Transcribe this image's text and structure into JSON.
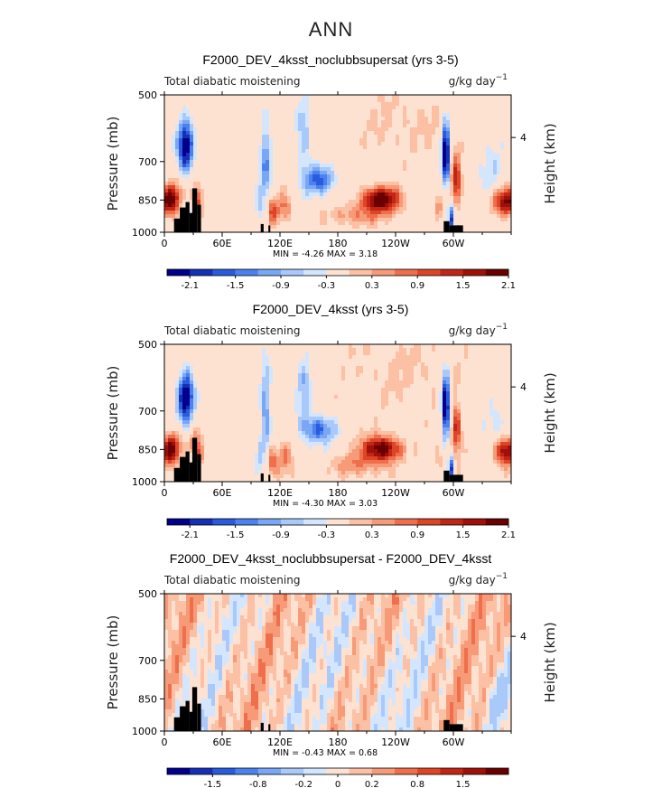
{
  "page_title": "ANN",
  "colors": [
    "#00008c",
    "#1530b5",
    "#2a5bdc",
    "#4b82f0",
    "#7aa7f5",
    "#a9c9fb",
    "#d3e6fd",
    "#fde2d2",
    "#fcc0a4",
    "#f79a78",
    "#ef6e4c",
    "#de4526",
    "#c22515",
    "#9e1009",
    "#6a0000"
  ],
  "chart_data": [
    {
      "type": "heatmap",
      "title": "F2000_DEV_4ksst_noclubbsupersat (yrs 3-5)",
      "left_label": "Total diabatic moistening",
      "units": "g/kg day",
      "units_exp": "−1",
      "ylabel": "Pressure (mb)",
      "right_label": "Height (km)",
      "right_tick": "4",
      "y_ticks": [
        "500",
        "700",
        "850",
        "1000"
      ],
      "x_ticks": [
        "0",
        "60E",
        "120E",
        "180",
        "120W",
        "60W"
      ],
      "xlim": [
        0,
        360
      ],
      "ylim": [
        1000,
        500
      ],
      "min_label": "MIN =",
      "min_value": "-4.26",
      "max_label": "MAX =",
      "max_value": "3.18",
      "colorbar_ticks": [
        "-2.1",
        "-1.5",
        "-0.9",
        "-0.3",
        "0.3",
        "0.9",
        "1.5",
        "2.1"
      ],
      "levels": [
        -2.4,
        -2.1,
        -1.8,
        -1.5,
        -1.2,
        -0.9,
        -0.6,
        -0.3,
        0.3,
        0.6,
        0.9,
        1.2,
        1.5,
        1.8,
        2.1,
        2.4
      ],
      "scale": 1.0,
      "noise": 0.05
    },
    {
      "type": "heatmap",
      "title": "F2000_DEV_4ksst (yrs 3-5)",
      "left_label": "Total diabatic moistening",
      "units": "g/kg day",
      "units_exp": "−1",
      "ylabel": "Pressure (mb)",
      "right_label": "Height (km)",
      "right_tick": "4",
      "y_ticks": [
        "500",
        "700",
        "850",
        "1000"
      ],
      "x_ticks": [
        "0",
        "60E",
        "120E",
        "180",
        "120W",
        "60W"
      ],
      "xlim": [
        0,
        360
      ],
      "ylim": [
        1000,
        500
      ],
      "min_label": "MIN =",
      "min_value": "-4.30",
      "max_label": "MAX =",
      "max_value": "3.03",
      "colorbar_ticks": [
        "-2.1",
        "-1.5",
        "-0.9",
        "-0.3",
        "0.3",
        "0.9",
        "1.5",
        "2.1"
      ],
      "levels": [
        -2.4,
        -2.1,
        -1.8,
        -1.5,
        -1.2,
        -0.9,
        -0.6,
        -0.3,
        0.3,
        0.6,
        0.9,
        1.2,
        1.5,
        1.8,
        2.1,
        2.4
      ],
      "scale": 1.0,
      "noise": 0.06
    },
    {
      "type": "heatmap",
      "title": "F2000_DEV_4ksst_noclubbsupersat - F2000_DEV_4ksst",
      "left_label": "Total diabatic moistening",
      "units": "g/kg day",
      "units_exp": "−1",
      "ylabel": "Pressure (mb)",
      "right_label": "Height (km)",
      "right_tick": "4",
      "y_ticks": [
        "500",
        "700",
        "850",
        "1000"
      ],
      "x_ticks": [
        "0",
        "60E",
        "120E",
        "180",
        "120W",
        "60W"
      ],
      "xlim": [
        0,
        360
      ],
      "ylim": [
        1000,
        500
      ],
      "min_label": "MIN =",
      "min_value": "-0.43",
      "max_label": "MAX =",
      "max_value": "0.68",
      "colorbar_ticks": [
        "-1.5",
        "-0.8",
        "-0.2",
        "0",
        "0.2",
        "0.8",
        "1.5"
      ],
      "levels": [
        -2.5,
        -2,
        -1.5,
        -1,
        -0.8,
        -0.5,
        -0.2,
        -0.1,
        0,
        0.1,
        0.2,
        0.5,
        0.8,
        1,
        1.5,
        2
      ],
      "scale": 0.12,
      "noise": 0.25,
      "diff": true
    }
  ]
}
